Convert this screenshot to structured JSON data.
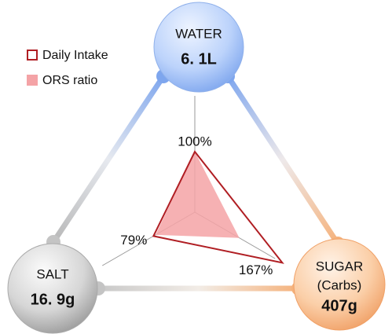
{
  "chart_data": {
    "type": "radar",
    "categories": [
      "WATER",
      "SALT",
      "SUGAR"
    ],
    "category_notes": [
      null,
      null,
      "(Carbs)"
    ],
    "amounts": [
      "6. 1L",
      "16. 9g",
      "407g"
    ],
    "rlim": [
      0,
      200
    ],
    "series": [
      {
        "name": "ORS ratio",
        "color": "#f4a3a6",
        "fill": true,
        "values": [
          100,
          75,
          85
        ]
      },
      {
        "name": "Daily Intake",
        "color": "#b01e23",
        "fill": false,
        "values": [
          100,
          79,
          167
        ],
        "value_labels": [
          "100%",
          "79%",
          "167%"
        ]
      }
    ],
    "legend": "top-left"
  }
}
